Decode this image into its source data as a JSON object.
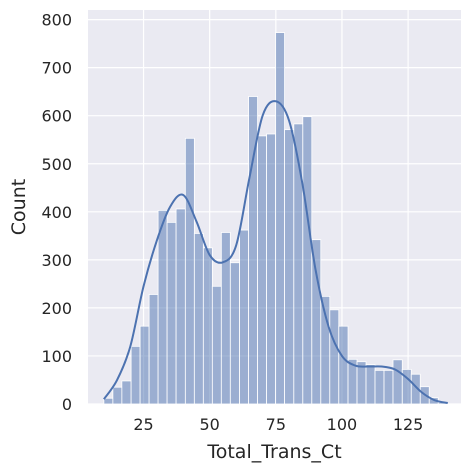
{
  "colors": {
    "plot_background": "#eaeaf2",
    "grid": "#ffffff",
    "bar_fill": "#4c72b0",
    "bar_opacity": 0.5,
    "kde_line": "#4c72b0"
  },
  "chart_data": {
    "type": "bar",
    "subtype": "histogram-with-kde",
    "title": "",
    "xlabel": "Total_Trans_Ct",
    "ylabel": "Count",
    "xlim": [
      4,
      145
    ],
    "ylim": [
      0,
      820
    ],
    "xticks": [
      25,
      50,
      75,
      100,
      125
    ],
    "yticks": [
      0,
      100,
      200,
      300,
      400,
      500,
      600,
      700,
      800
    ],
    "grid": true,
    "bin_edges": [
      10,
      13.4,
      16.8,
      20.3,
      23.7,
      27.1,
      30.5,
      33.9,
      37.3,
      40.8,
      44.2,
      47.6,
      51,
      54.4,
      57.8,
      61.3,
      64.7,
      68.1,
      71.5,
      74.9,
      78.3,
      81.8,
      85.2,
      88.6,
      92,
      95.4,
      98.8,
      102.3,
      105.7,
      109.1,
      112.5,
      115.9,
      119.3,
      122.8,
      126.2,
      129.6,
      133,
      136.4,
      139.8
    ],
    "counts": [
      12,
      35,
      48,
      120,
      162,
      228,
      403,
      378,
      406,
      553,
      355,
      325,
      245,
      357,
      294,
      362,
      640,
      558,
      562,
      773,
      571,
      583,
      598,
      342,
      224,
      196,
      162,
      93,
      88,
      82,
      70,
      70,
      92,
      72,
      62,
      36,
      13,
      3
    ],
    "kde": {
      "x": [
        10,
        15,
        20,
        25,
        30,
        35,
        40,
        45,
        50,
        55,
        60,
        65,
        70,
        75,
        80,
        85,
        90,
        95,
        100,
        105,
        110,
        115,
        120,
        125,
        130,
        135,
        140
      ],
      "y": [
        10,
        50,
        120,
        245,
        340,
        410,
        435,
        380,
        310,
        295,
        330,
        470,
        600,
        630,
        590,
        460,
        280,
        160,
        100,
        80,
        78,
        78,
        72,
        52,
        25,
        8,
        2
      ]
    }
  }
}
